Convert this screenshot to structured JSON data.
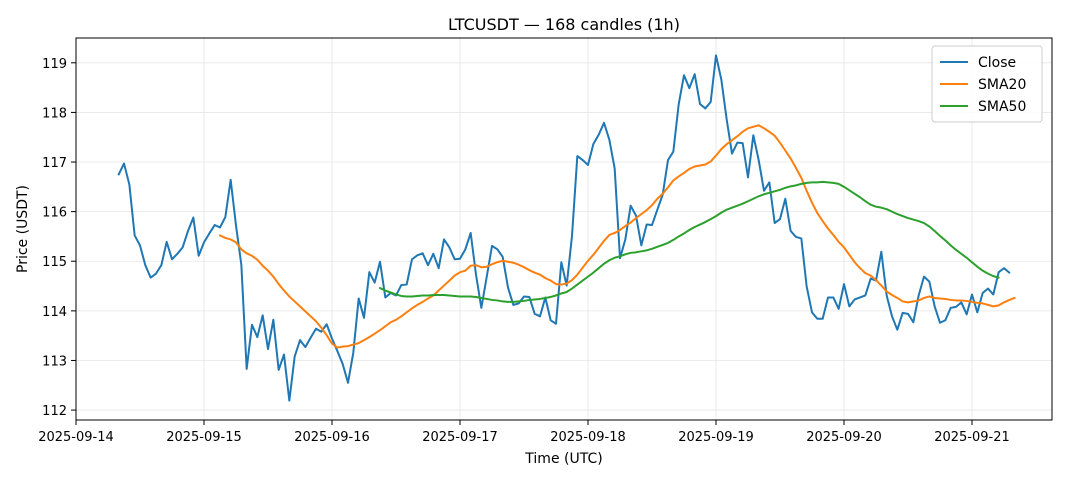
{
  "chart_data": {
    "type": "line",
    "title": "LTCUSDT — 168 candles (1h)",
    "xlabel": "Time (UTC)",
    "ylabel": "Price (USDT)",
    "x_start": "2025-09-14T08:00",
    "x_interval_hours": 1,
    "xlim": [
      "2025-09-14T00:00",
      "2025-09-21T15:00"
    ],
    "ylim": [
      111.8,
      119.5
    ],
    "x_ticks": [
      "2025-09-14",
      "2025-09-15",
      "2025-09-16",
      "2025-09-17",
      "2025-09-18",
      "2025-09-19",
      "2025-09-20",
      "2025-09-21"
    ],
    "y_ticks": [
      112,
      113,
      114,
      115,
      116,
      117,
      118,
      119
    ],
    "grid": true,
    "legend_position": "top-right",
    "series": [
      {
        "name": "Close",
        "color": "#1f77b4",
        "offset": 0,
        "values": [
          116.75,
          116.97,
          116.55,
          115.52,
          115.32,
          114.92,
          114.67,
          114.75,
          114.92,
          115.39,
          115.04,
          115.15,
          115.28,
          115.61,
          115.88,
          115.11,
          115.38,
          115.56,
          115.73,
          115.68,
          115.89,
          116.64,
          115.72,
          114.93,
          112.83,
          113.72,
          113.47,
          113.91,
          113.23,
          113.82,
          112.81,
          113.12,
          112.19,
          113.08,
          113.41,
          113.27,
          113.46,
          113.64,
          113.58,
          113.73,
          113.44,
          113.19,
          112.93,
          112.55,
          113.16,
          114.25,
          113.86,
          114.78,
          114.57,
          114.99,
          114.27,
          114.36,
          114.31,
          114.52,
          114.53,
          115.04,
          115.12,
          115.16,
          114.92,
          115.15,
          114.86,
          115.44,
          115.28,
          115.04,
          115.05,
          115.24,
          115.57,
          114.73,
          114.06,
          114.68,
          115.31,
          115.24,
          115.09,
          114.47,
          114.12,
          114.15,
          114.29,
          114.28,
          113.94,
          113.89,
          114.27,
          113.81,
          113.74,
          114.98,
          114.51,
          115.51,
          117.12,
          117.04,
          116.94,
          117.36,
          117.55,
          117.79,
          117.45,
          116.87,
          115.06,
          115.44,
          116.12,
          115.92,
          115.32,
          115.74,
          115.73,
          116.04,
          116.34,
          117.04,
          117.21,
          118.16,
          118.75,
          118.49,
          118.77,
          118.17,
          118.08,
          118.21,
          119.15,
          118.66,
          117.86,
          117.17,
          117.39,
          117.38,
          116.69,
          117.54,
          117.04,
          116.42,
          116.59,
          115.77,
          115.85,
          116.26,
          115.61,
          115.49,
          115.46,
          114.49,
          113.97,
          113.84,
          113.84,
          114.27,
          114.27,
          114.04,
          114.54,
          114.09,
          114.23,
          114.27,
          114.31,
          114.65,
          114.61,
          115.19,
          114.31,
          113.89,
          113.62,
          113.96,
          113.94,
          113.77,
          114.31,
          114.69,
          114.59,
          114.09,
          113.76,
          113.81,
          114.06,
          114.08,
          114.17,
          113.93,
          114.33,
          113.97,
          114.36,
          114.45,
          114.33,
          114.78,
          114.86,
          114.77
        ]
      },
      {
        "name": "SMA20",
        "color": "#ff7f0e",
        "offset": 19,
        "values": [
          115.52,
          115.47,
          115.44,
          115.38,
          115.24,
          115.16,
          115.11,
          115.03,
          114.91,
          114.81,
          114.69,
          114.54,
          114.41,
          114.29,
          114.19,
          114.09,
          113.99,
          113.89,
          113.79,
          113.66,
          113.51,
          113.34,
          113.26,
          113.28,
          113.29,
          113.32,
          113.35,
          113.41,
          113.47,
          113.54,
          113.61,
          113.69,
          113.77,
          113.82,
          113.89,
          113.97,
          114.05,
          114.12,
          114.18,
          114.25,
          114.31,
          114.41,
          114.51,
          114.61,
          114.71,
          114.78,
          114.81,
          114.91,
          114.92,
          114.88,
          114.89,
          114.94,
          114.98,
          115.01,
          114.99,
          114.97,
          114.93,
          114.88,
          114.82,
          114.77,
          114.73,
          114.66,
          114.61,
          114.54,
          114.53,
          114.55,
          114.62,
          114.73,
          114.87,
          115.01,
          115.13,
          115.27,
          115.41,
          115.53,
          115.57,
          115.63,
          115.71,
          115.78,
          115.87,
          115.95,
          116.03,
          116.13,
          116.26,
          116.36,
          116.49,
          116.63,
          116.71,
          116.78,
          116.86,
          116.91,
          116.93,
          116.95,
          117.01,
          117.13,
          117.26,
          117.36,
          117.44,
          117.52,
          117.61,
          117.68,
          117.71,
          117.74,
          117.68,
          117.61,
          117.53,
          117.39,
          117.23,
          117.07,
          116.88,
          116.68,
          116.42,
          116.18,
          115.97,
          115.81,
          115.66,
          115.53,
          115.39,
          115.28,
          115.13,
          114.98,
          114.86,
          114.76,
          114.71,
          114.62,
          114.51,
          114.39,
          114.32,
          114.26,
          114.19,
          114.17,
          114.19,
          114.21,
          114.26,
          114.29,
          114.26,
          114.25,
          114.24,
          114.22,
          114.21,
          114.21,
          114.2,
          114.18,
          114.16,
          114.15,
          114.12,
          114.09,
          114.11,
          114.17,
          114.22,
          114.26
        ]
      },
      {
        "name": "SMA50",
        "color": "#2ca02c",
        "offset": 49,
        "values": [
          114.46,
          114.41,
          114.37,
          114.33,
          114.3,
          114.29,
          114.29,
          114.3,
          114.31,
          114.31,
          114.32,
          114.32,
          114.32,
          114.31,
          114.3,
          114.29,
          114.29,
          114.29,
          114.28,
          114.26,
          114.24,
          114.22,
          114.21,
          114.19,
          114.18,
          114.18,
          114.19,
          114.2,
          114.22,
          114.23,
          114.24,
          114.26,
          114.28,
          114.31,
          114.35,
          114.38,
          114.45,
          114.53,
          114.61,
          114.69,
          114.77,
          114.86,
          114.95,
          115.02,
          115.07,
          115.1,
          115.14,
          115.17,
          115.18,
          115.2,
          115.22,
          115.25,
          115.29,
          115.33,
          115.37,
          115.43,
          115.5,
          115.56,
          115.63,
          115.69,
          115.74,
          115.79,
          115.85,
          115.91,
          115.98,
          116.04,
          116.08,
          116.12,
          116.16,
          116.21,
          116.26,
          116.31,
          116.35,
          116.38,
          116.41,
          116.44,
          116.48,
          116.51,
          116.53,
          116.56,
          116.58,
          116.59,
          116.59,
          116.6,
          116.59,
          116.58,
          116.56,
          116.5,
          116.43,
          116.36,
          116.29,
          116.21,
          116.14,
          116.1,
          116.08,
          116.05,
          116.0,
          115.95,
          115.91,
          115.87,
          115.84,
          115.81,
          115.77,
          115.7,
          115.61,
          115.51,
          115.42,
          115.32,
          115.23,
          115.15,
          115.07,
          114.98,
          114.89,
          114.81,
          114.75,
          114.7,
          114.67
        ]
      }
    ]
  }
}
